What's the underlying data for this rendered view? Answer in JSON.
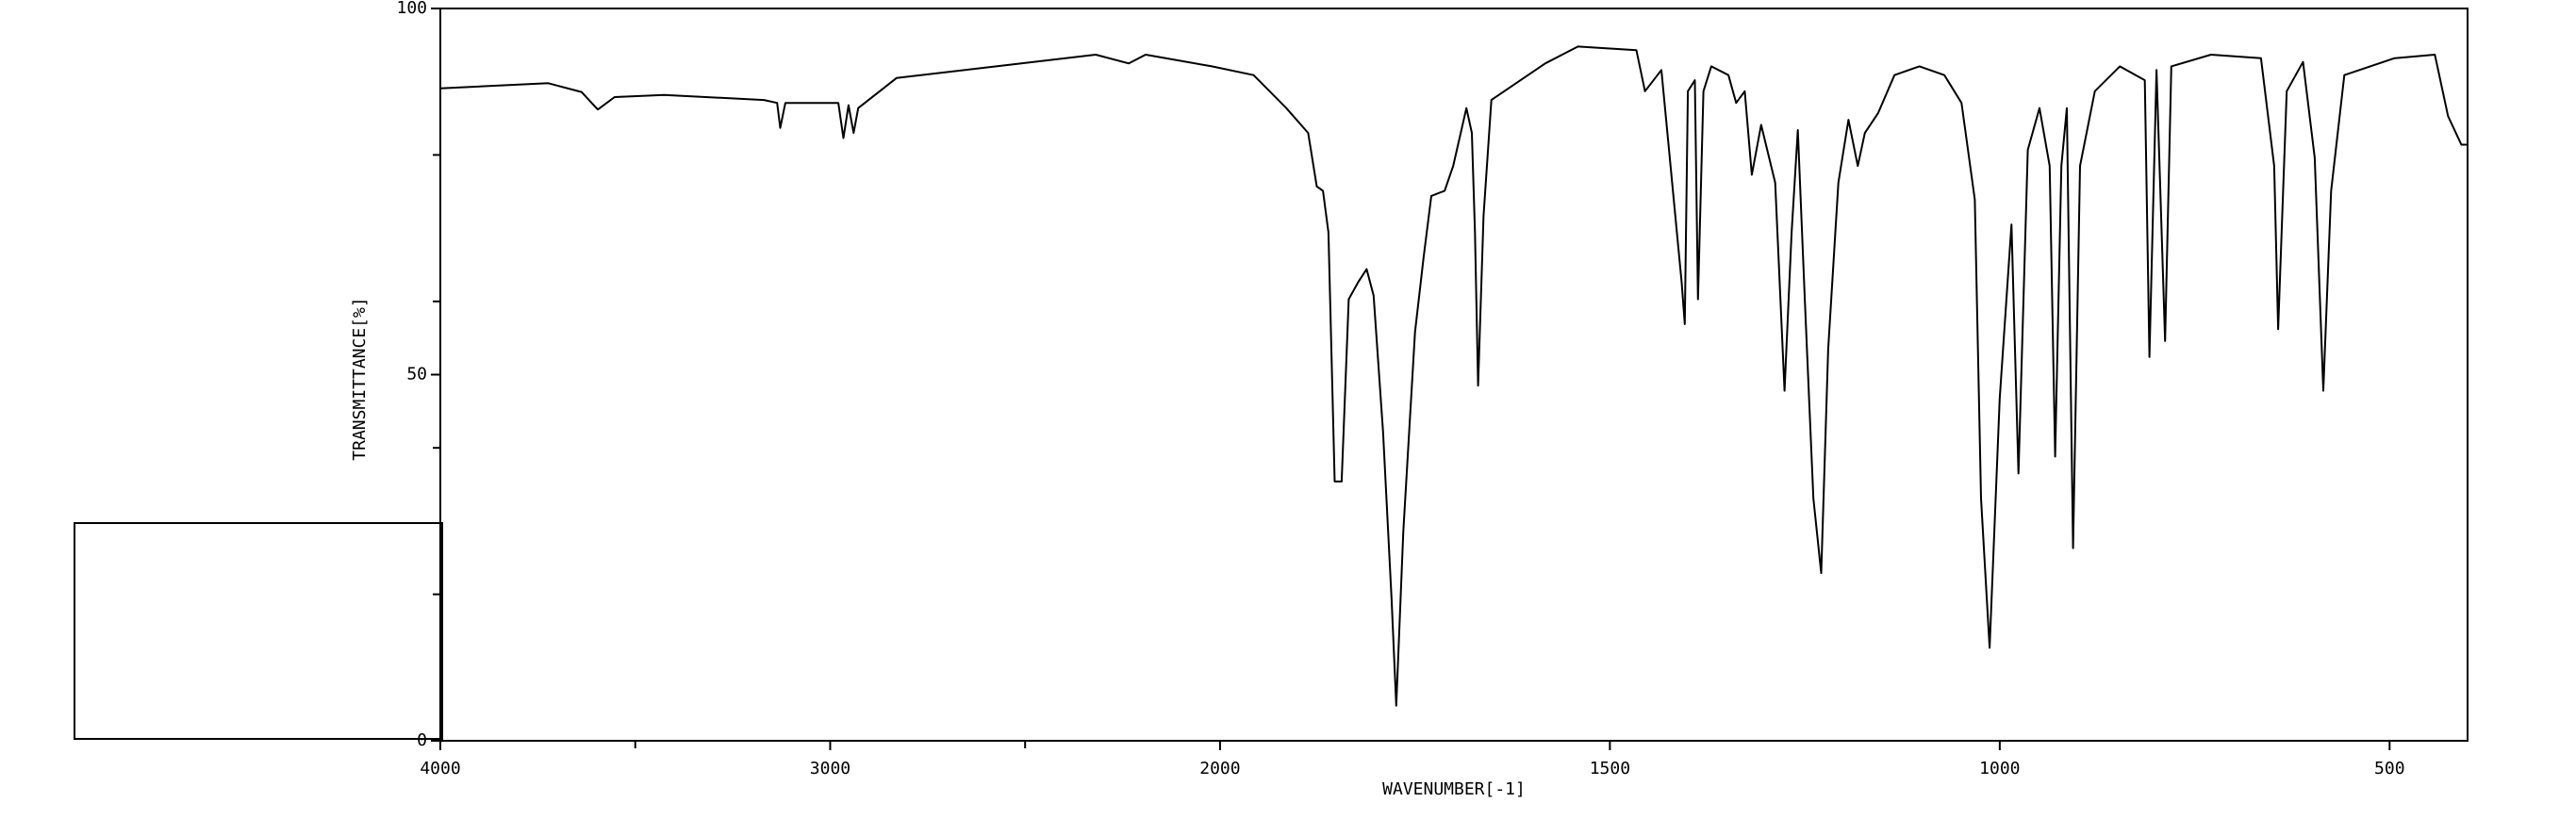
{
  "chart_data": {
    "type": "line",
    "x_label": "WAVENUMBER[-1]",
    "y_label": "TRANSMITTANCE[%]",
    "x": [
      4000,
      3723,
      3638,
      3596,
      3553,
      3426,
      3170,
      3136,
      3128,
      3115,
      2979,
      2966,
      2953,
      2940,
      2928,
      2830,
      2574,
      2319,
      2234,
      2191,
      2021,
      1957,
      1915,
      1887,
      1876,
      1868,
      1861,
      1853,
      1844,
      1835,
      1823,
      1812,
      1803,
      1791,
      1780,
      1774,
      1765,
      1750,
      1739,
      1729,
      1712,
      1701,
      1684,
      1677,
      1673,
      1669,
      1662,
      1652,
      1583,
      1541,
      1466,
      1455,
      1434,
      1408,
      1404,
      1400,
      1391,
      1387,
      1380,
      1370,
      1348,
      1338,
      1327,
      1318,
      1306,
      1288,
      1276,
      1267,
      1259,
      1250,
      1239,
      1229,
      1220,
      1207,
      1194,
      1182,
      1173,
      1156,
      1135,
      1103,
      1071,
      1049,
      1032,
      1024,
      1013,
      1000,
      985,
      976,
      964,
      949,
      936,
      929,
      921,
      914,
      906,
      897,
      878,
      846,
      814,
      808,
      799,
      788,
      780,
      729,
      665,
      648,
      643,
      632,
      611,
      596,
      585,
      575,
      558,
      494,
      442,
      425,
      408,
      400
    ],
    "values": [
      89.1,
      89.8,
      88.6,
      86.2,
      87.9,
      88.2,
      87.5,
      87.1,
      83.7,
      87.1,
      87.1,
      82.3,
      86.8,
      83.0,
      86.4,
      90.5,
      92.1,
      93.7,
      92.5,
      93.7,
      92.1,
      90.9,
      86.4,
      83.0,
      75.7,
      75.1,
      69.4,
      35.4,
      35.4,
      60.3,
      62.6,
      64.4,
      60.8,
      42.2,
      19.5,
      4.8,
      28.6,
      55.8,
      66.0,
      74.4,
      75.1,
      78.5,
      86.4,
      83.0,
      69.4,
      48.5,
      71.7,
      87.5,
      92.5,
      94.8,
      94.3,
      88.7,
      91.6,
      62.6,
      56.9,
      88.7,
      90.2,
      60.3,
      88.7,
      92.1,
      90.9,
      87.1,
      88.7,
      77.3,
      84.1,
      76.2,
      47.8,
      69.4,
      83.4,
      60.3,
      33.1,
      22.9,
      53.5,
      76.2,
      84.8,
      78.5,
      83.0,
      85.7,
      90.9,
      92.1,
      90.9,
      87.1,
      73.9,
      33.1,
      12.7,
      46.7,
      70.5,
      36.5,
      80.7,
      86.4,
      78.5,
      38.8,
      78.5,
      86.4,
      26.3,
      78.5,
      88.7,
      92.1,
      90.2,
      52.4,
      91.6,
      54.6,
      92.1,
      93.7,
      93.2,
      78.5,
      56.2,
      88.7,
      92.7,
      79.6,
      47.8,
      75.1,
      90.9,
      93.2,
      93.7,
      85.3,
      81.4,
      81.4
    ],
    "color": "#000000",
    "xlim": [
      4000,
      400
    ],
    "x_scale_break": 2000,
    "xticks": [
      4000,
      3000,
      2000,
      1500,
      1000,
      500
    ],
    "xminorticks": [
      3500,
      2500
    ],
    "ylim": [
      0,
      100
    ],
    "yticks": [
      0,
      50,
      100
    ],
    "yminorticks": [
      20,
      40,
      60,
      80
    ]
  }
}
